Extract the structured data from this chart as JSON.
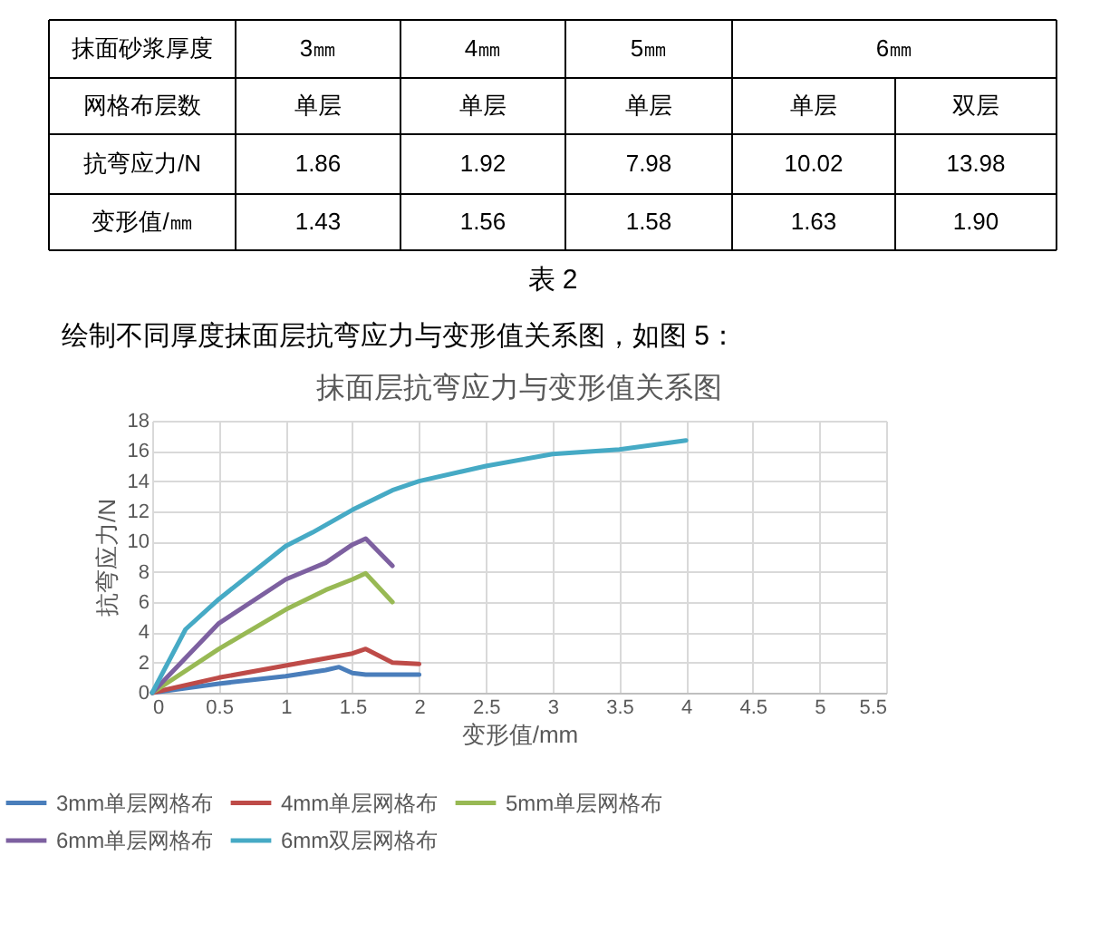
{
  "chart_data": [
    {
      "type": "other",
      "annotations": [
        "抹面砂浆厚度",
        "3㎜",
        "4㎜",
        "5㎜",
        "6㎜",
        "网格布层数",
        "单层",
        "单层",
        "单层",
        "单层",
        "双层",
        "抗弯应力/N",
        "1.86",
        "1.92",
        "7.98",
        "10.02",
        "13.98",
        "变形值/㎜",
        "1.43",
        "1.56",
        "1.58",
        "1.63",
        "1.90",
        "表 2",
        "绘制不同厚度抹面层抗弯应力与变形值关系图，如图 5："
      ]
    },
    {
      "type": "line",
      "title": "抹面层抗弯应力与变形值关系图",
      "xlabel": "变形值/mm",
      "ylabel": "抗弯应力/N",
      "xlim": [
        0,
        5.5
      ],
      "xticks": [
        0,
        0.5,
        1,
        1.5,
        2,
        2.5,
        3,
        3.5,
        4,
        4.5,
        5,
        5.5
      ],
      "ylim": [
        0,
        18
      ],
      "yticks": [
        0,
        2,
        4,
        6,
        8,
        10,
        12,
        14,
        16,
        18
      ],
      "grid": true,
      "legend": "bottom",
      "marker": "none",
      "line_style": "solid",
      "series": [
        {
          "name": "3mm单层网格布",
          "color": "#4a7ebb",
          "x": [
            0,
            0.5,
            1,
            1.3,
            1.4,
            1.5,
            1.6,
            1.8,
            2
          ],
          "values": [
            0,
            0.6,
            1.1,
            1.5,
            1.7,
            1.3,
            1.2,
            1.2,
            1.2
          ]
        },
        {
          "name": "4mm单层网格布",
          "color": "#be4b48",
          "x": [
            0,
            0.5,
            1,
            1.5,
            1.6,
            1.8,
            2
          ],
          "values": [
            0,
            1.0,
            1.8,
            2.6,
            2.9,
            2.0,
            1.9
          ]
        },
        {
          "name": "5mm单层网格布",
          "color": "#98b954",
          "x": [
            0,
            0.5,
            1,
            1.3,
            1.5,
            1.6,
            1.8
          ],
          "values": [
            0,
            2.9,
            5.5,
            6.8,
            7.5,
            7.9,
            6.0
          ]
        },
        {
          "name": "6mm单层网格布",
          "color": "#7d60a0",
          "x": [
            0,
            0.5,
            1,
            1.3,
            1.5,
            1.6,
            1.8
          ],
          "values": [
            0,
            4.6,
            7.5,
            8.6,
            9.8,
            10.2,
            8.4
          ]
        },
        {
          "name": "6mm双层网格布",
          "color": "#46aac5",
          "x": [
            0,
            0.25,
            0.5,
            1,
            1.2,
            1.5,
            1.8,
            2,
            2.5,
            3,
            3.5,
            4
          ],
          "values": [
            0,
            4.2,
            6.2,
            9.7,
            10.6,
            12.1,
            13.4,
            14.0,
            15.0,
            15.8,
            16.1,
            16.7
          ]
        }
      ]
    }
  ]
}
